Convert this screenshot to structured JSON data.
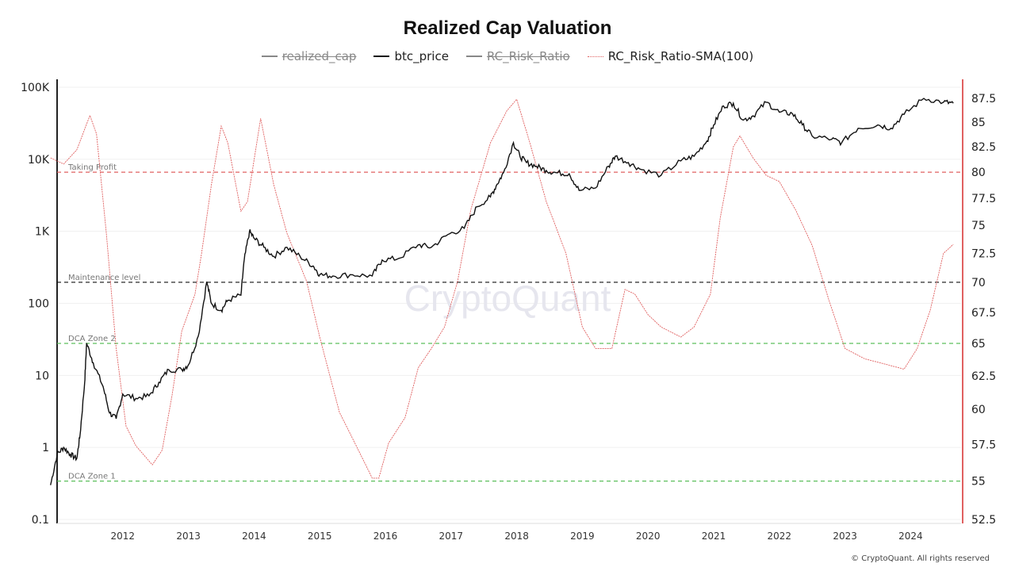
{
  "chart_data": {
    "type": "line",
    "title": "Realized Cap Valuation",
    "legend": [
      {
        "name": "realized_cap",
        "hidden": true,
        "color": "#888888"
      },
      {
        "name": "btc_price",
        "hidden": false,
        "color": "#111111"
      },
      {
        "name": "RC_Risk_Ratio",
        "hidden": true,
        "color": "#888888"
      },
      {
        "name": "RC_Risk_Ratio-SMA(100)",
        "hidden": false,
        "color": "#e06060"
      }
    ],
    "legend_placement": "top-center",
    "x_ticks": [
      "2012",
      "2013",
      "2014",
      "2015",
      "2016",
      "2017",
      "2018",
      "2019",
      "2020",
      "2021",
      "2022",
      "2023",
      "2024"
    ],
    "xlim": [
      2011.0,
      2024.7
    ],
    "y_left": {
      "scale": "log",
      "range": [
        0.1,
        100000
      ],
      "ticks": [
        "0.1",
        "1",
        "10",
        "100",
        "1K",
        "10K",
        "100K"
      ]
    },
    "y_right": {
      "scale": "log",
      "range": [
        52.5,
        87.5
      ],
      "ticks": [
        "52.5",
        "55",
        "57.5",
        "60",
        "62.5",
        "65",
        "67.5",
        "70",
        "72.5",
        "75",
        "77.5",
        "80",
        "82.5",
        "85",
        "87.5"
      ],
      "axis_color": "#e06060"
    },
    "grid": true,
    "levels": [
      {
        "label": "Taking Profit",
        "value": 80,
        "color": "#e06060"
      },
      {
        "label": "Maintenance level",
        "value": 70,
        "color": "#111111"
      },
      {
        "label": "DCA Zone 2",
        "value": 65,
        "color": "#5cbf5c"
      },
      {
        "label": "DCA Zone 1",
        "value": 55,
        "color": "#5cbf5c"
      }
    ],
    "series": [
      {
        "name": "btc_price",
        "axis": "left",
        "points": [
          [
            2010.9,
            0.3
          ],
          [
            2011.0,
            0.8
          ],
          [
            2011.1,
            1.0
          ],
          [
            2011.2,
            0.8
          ],
          [
            2011.3,
            0.7
          ],
          [
            2011.35,
            1.5
          ],
          [
            2011.42,
            8
          ],
          [
            2011.45,
            28
          ],
          [
            2011.55,
            15
          ],
          [
            2011.7,
            7
          ],
          [
            2011.8,
            3
          ],
          [
            2011.9,
            2.5
          ],
          [
            2012.0,
            5.5
          ],
          [
            2012.2,
            4.8
          ],
          [
            2012.4,
            5.2
          ],
          [
            2012.55,
            8
          ],
          [
            2012.7,
            12
          ],
          [
            2012.9,
            12
          ],
          [
            2013.0,
            14
          ],
          [
            2013.15,
            35
          ],
          [
            2013.28,
            200
          ],
          [
            2013.35,
            100
          ],
          [
            2013.5,
            80
          ],
          [
            2013.6,
            110
          ],
          [
            2013.8,
            130
          ],
          [
            2013.85,
            400
          ],
          [
            2013.93,
            1000
          ],
          [
            2014.0,
            800
          ],
          [
            2014.15,
            600
          ],
          [
            2014.3,
            450
          ],
          [
            2014.5,
            600
          ],
          [
            2014.7,
            450
          ],
          [
            2014.9,
            330
          ],
          [
            2015.0,
            250
          ],
          [
            2015.2,
            240
          ],
          [
            2015.5,
            250
          ],
          [
            2015.8,
            240
          ],
          [
            2015.95,
            400
          ],
          [
            2016.2,
            420
          ],
          [
            2016.5,
            650
          ],
          [
            2016.7,
            600
          ],
          [
            2016.95,
            900
          ],
          [
            2017.2,
            1100
          ],
          [
            2017.4,
            2200
          ],
          [
            2017.6,
            3000
          ],
          [
            2017.7,
            4500
          ],
          [
            2017.8,
            6500
          ],
          [
            2017.95,
            17000
          ],
          [
            2018.05,
            11000
          ],
          [
            2018.15,
            9000
          ],
          [
            2018.3,
            8000
          ],
          [
            2018.45,
            7000
          ],
          [
            2018.6,
            6500
          ],
          [
            2018.8,
            6300
          ],
          [
            2018.95,
            3700
          ],
          [
            2019.2,
            4000
          ],
          [
            2019.4,
            8000
          ],
          [
            2019.5,
            11000
          ],
          [
            2019.7,
            9000
          ],
          [
            2019.9,
            7200
          ],
          [
            2020.2,
            6000
          ],
          [
            2020.5,
            9500
          ],
          [
            2020.7,
            11000
          ],
          [
            2020.9,
            18000
          ],
          [
            2021.0,
            30000
          ],
          [
            2021.15,
            55000
          ],
          [
            2021.3,
            60000
          ],
          [
            2021.45,
            35000
          ],
          [
            2021.6,
            40000
          ],
          [
            2021.8,
            62000
          ],
          [
            2022.0,
            45000
          ],
          [
            2022.2,
            43000
          ],
          [
            2022.35,
            30000
          ],
          [
            2022.5,
            21000
          ],
          [
            2022.8,
            19000
          ],
          [
            2022.95,
            17000
          ],
          [
            2023.2,
            27000
          ],
          [
            2023.5,
            30000
          ],
          [
            2023.7,
            27000
          ],
          [
            2023.9,
            42000
          ],
          [
            2024.2,
            70000
          ],
          [
            2024.5,
            62000
          ],
          [
            2024.65,
            60000
          ]
        ]
      },
      {
        "name": "RC_Risk_Ratio-SMA(100)",
        "axis": "right",
        "points": [
          [
            2010.9,
            81.4
          ],
          [
            2011.1,
            80.8
          ],
          [
            2011.3,
            82.2
          ],
          [
            2011.5,
            85.7
          ],
          [
            2011.6,
            83.8
          ],
          [
            2011.75,
            74.3
          ],
          [
            2011.9,
            64.6
          ],
          [
            2012.05,
            58.8
          ],
          [
            2012.2,
            57.4
          ],
          [
            2012.45,
            56.1
          ],
          [
            2012.6,
            57.1
          ],
          [
            2012.75,
            61
          ],
          [
            2012.9,
            66
          ],
          [
            2013.1,
            69
          ],
          [
            2013.2,
            72.5
          ],
          [
            2013.35,
            78.8
          ],
          [
            2013.5,
            84.6
          ],
          [
            2013.6,
            82.9
          ],
          [
            2013.8,
            76.3
          ],
          [
            2013.9,
            77.2
          ],
          [
            2014.1,
            85.4
          ],
          [
            2014.3,
            78.8
          ],
          [
            2014.5,
            74.3
          ],
          [
            2014.8,
            70.1
          ],
          [
            2015.0,
            65.5
          ],
          [
            2015.3,
            59.8
          ],
          [
            2015.6,
            57.0
          ],
          [
            2015.8,
            55.2
          ],
          [
            2015.9,
            55.2
          ],
          [
            2016.05,
            57.6
          ],
          [
            2016.3,
            59.4
          ],
          [
            2016.5,
            63.1
          ],
          [
            2016.7,
            64.6
          ],
          [
            2016.9,
            66.3
          ],
          [
            2017.1,
            70.1
          ],
          [
            2017.3,
            76.4
          ],
          [
            2017.6,
            82.9
          ],
          [
            2017.85,
            86.2
          ],
          [
            2018.0,
            87.4
          ],
          [
            2018.2,
            82.9
          ],
          [
            2018.45,
            77.2
          ],
          [
            2018.75,
            72.5
          ],
          [
            2019.0,
            66.3
          ],
          [
            2019.2,
            64.6
          ],
          [
            2019.45,
            64.6
          ],
          [
            2019.65,
            69.4
          ],
          [
            2019.8,
            69
          ],
          [
            2020.0,
            67.3
          ],
          [
            2020.2,
            66.3
          ],
          [
            2020.5,
            65.5
          ],
          [
            2020.7,
            66.3
          ],
          [
            2020.95,
            69
          ],
          [
            2021.1,
            75.7
          ],
          [
            2021.3,
            82.5
          ],
          [
            2021.4,
            83.6
          ],
          [
            2021.6,
            81.4
          ],
          [
            2021.8,
            79.7
          ],
          [
            2022.0,
            79.1
          ],
          [
            2022.25,
            76.4
          ],
          [
            2022.5,
            73.2
          ],
          [
            2022.75,
            68.6
          ],
          [
            2023.0,
            64.6
          ],
          [
            2023.3,
            63.8
          ],
          [
            2023.6,
            63.4
          ],
          [
            2023.9,
            63.0
          ],
          [
            2024.1,
            64.6
          ],
          [
            2024.3,
            67.7
          ],
          [
            2024.5,
            72.5
          ],
          [
            2024.65,
            73.3
          ]
        ]
      }
    ]
  },
  "watermark": "CryptoQuant",
  "footer": "© CryptoQuant. All rights reserved"
}
